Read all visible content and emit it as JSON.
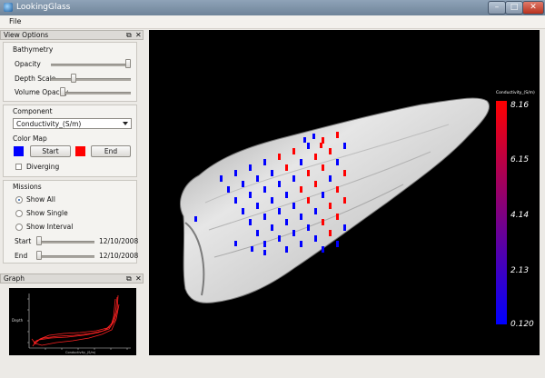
{
  "window": {
    "title": "LookingGlass"
  },
  "menu": {
    "file": "File"
  },
  "view_options": {
    "header": "View Options",
    "bathymetry": {
      "label": "Bathymetry",
      "opacity_label": "Opacity",
      "opacity_value": 1.0,
      "depth_scale_label": "Depth Scale",
      "depth_scale_value": 0.3,
      "volume_opacity_label": "Volume Opacity",
      "volume_opacity_value": 0.0
    },
    "component": {
      "label": "Component",
      "selected": "Conductivity_(S/m)"
    },
    "color_map": {
      "label": "Color Map",
      "start_label": "Start",
      "end_label": "End",
      "start_color": "#0000ff",
      "end_color": "#ff0000",
      "diverging_label": "Diverging"
    },
    "missions": {
      "label": "Missions",
      "show_all": "Show All",
      "show_single": "Show Single",
      "show_interval": "Show Interval",
      "start_label": "Start",
      "start_date": "12/10/2008",
      "end_label": "End",
      "end_date": "12/10/2008"
    }
  },
  "graph": {
    "header": "Graph",
    "xlabel": "Conductivity_(S/m)",
    "ylabel": "Depth"
  },
  "legend": {
    "title": "Conductivity_(S/m)",
    "ticks": [
      "8.16",
      "6.15",
      "4.14",
      "2.13",
      "0.120"
    ],
    "low_color": "#0000ff",
    "high_color": "#ff0000"
  }
}
